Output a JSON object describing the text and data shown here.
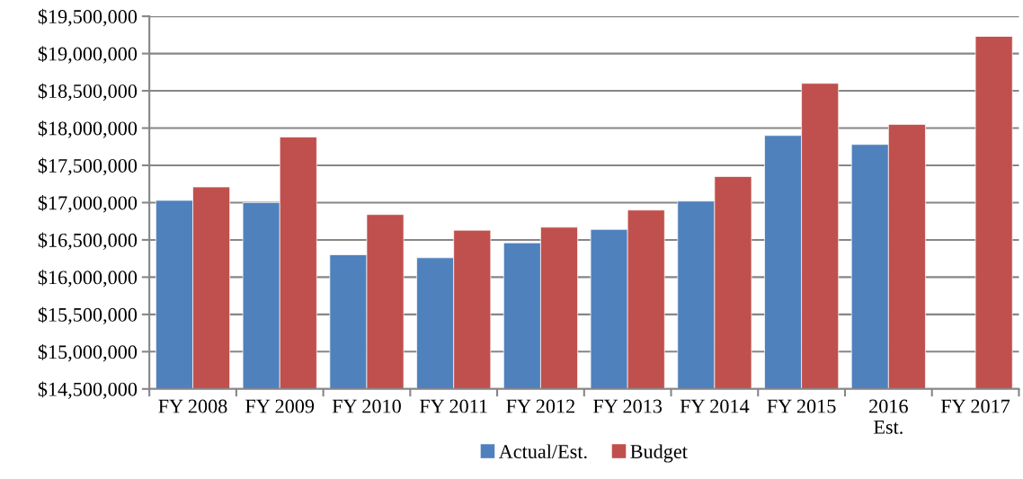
{
  "chart_data": {
    "type": "bar",
    "categories": [
      "FY 2008",
      "FY 2009",
      "FY 2010",
      "FY 2011",
      "FY 2012",
      "FY 2013",
      "FY 2014",
      "FY 2015",
      "2016\nEst.",
      "FY 2017"
    ],
    "series": [
      {
        "name": "Actual/Est.",
        "color": "#4f81bd",
        "values": [
          17030000,
          17000000,
          16300000,
          16260000,
          16460000,
          16640000,
          17020000,
          17900000,
          17780000,
          null
        ]
      },
      {
        "name": "Budget",
        "color": "#c0504d",
        "values": [
          17210000,
          17880000,
          16840000,
          16630000,
          16670000,
          16900000,
          17350000,
          18600000,
          18050000,
          19230000
        ]
      }
    ],
    "ylim": [
      14500000,
      19500000
    ],
    "yticks": [
      {
        "value": 14500000,
        "label": "$14,500,000"
      },
      {
        "value": 15000000,
        "label": "$15,000,000"
      },
      {
        "value": 15500000,
        "label": "$15,500,000"
      },
      {
        "value": 16000000,
        "label": "$16,000,000"
      },
      {
        "value": 16500000,
        "label": "$16,500,000"
      },
      {
        "value": 17000000,
        "label": "$17,000,000"
      },
      {
        "value": 17500000,
        "label": "$17,500,000"
      },
      {
        "value": 18000000,
        "label": "$18,000,000"
      },
      {
        "value": 18500000,
        "label": "$18,500,000"
      },
      {
        "value": 19000000,
        "label": "$19,000,000"
      },
      {
        "value": 19500000,
        "label": "$19,500,000"
      }
    ],
    "grid": "y",
    "legend": "bottom"
  }
}
